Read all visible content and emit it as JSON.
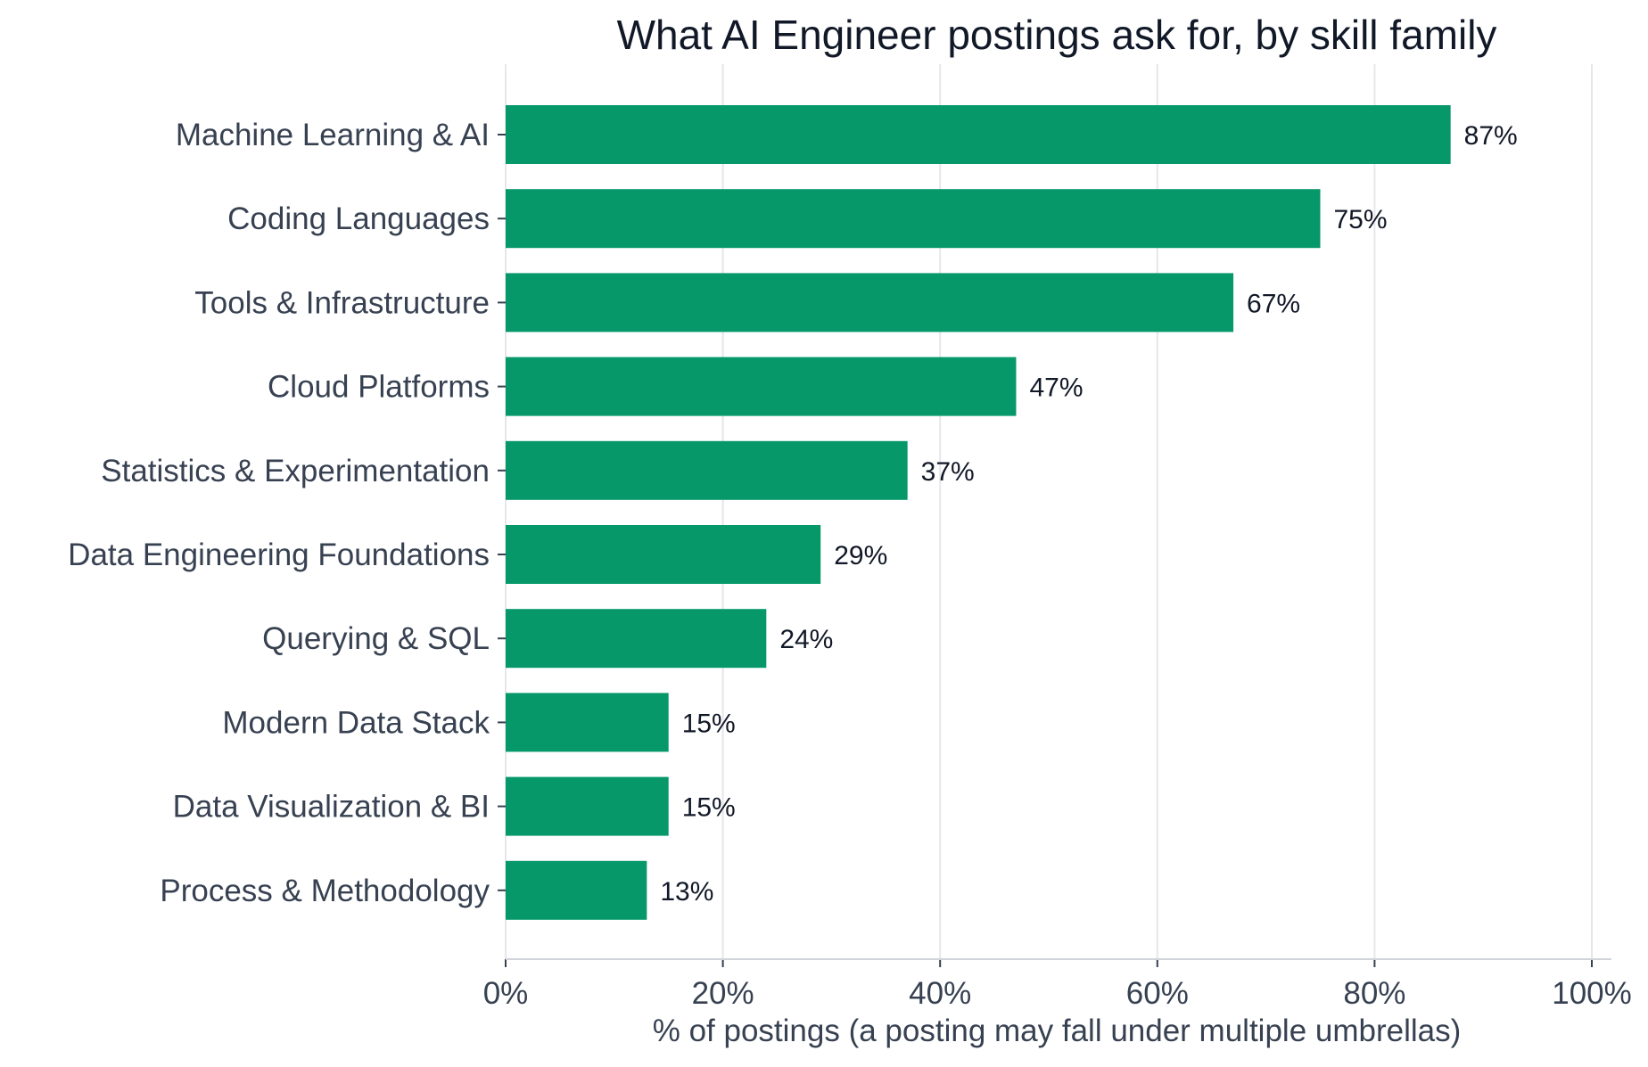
{
  "chart_data": {
    "type": "bar",
    "orientation": "horizontal",
    "title": "What AI Engineer postings ask for, by skill family",
    "xlabel": "% of postings (a posting may fall under multiple umbrellas)",
    "ylabel": "",
    "categories": [
      "Machine Learning & AI",
      "Coding Languages",
      "Tools & Infrastructure",
      "Cloud Platforms",
      "Statistics & Experimentation",
      "Data Engineering Foundations",
      "Querying & SQL",
      "Modern Data Stack",
      "Data Visualization & BI",
      "Process & Methodology"
    ],
    "values": [
      87,
      75,
      67,
      47,
      37,
      29,
      24,
      15,
      15,
      13
    ],
    "value_labels": [
      "87%",
      "75%",
      "67%",
      "47%",
      "37%",
      "29%",
      "24%",
      "15%",
      "15%",
      "13%"
    ],
    "xlim": [
      0,
      100
    ],
    "xticks": [
      0,
      20,
      40,
      60,
      80,
      100
    ],
    "xtick_labels": [
      "0%",
      "20%",
      "40%",
      "60%",
      "80%",
      "100%"
    ],
    "grid": "vertical",
    "bar_color": "#069869"
  }
}
